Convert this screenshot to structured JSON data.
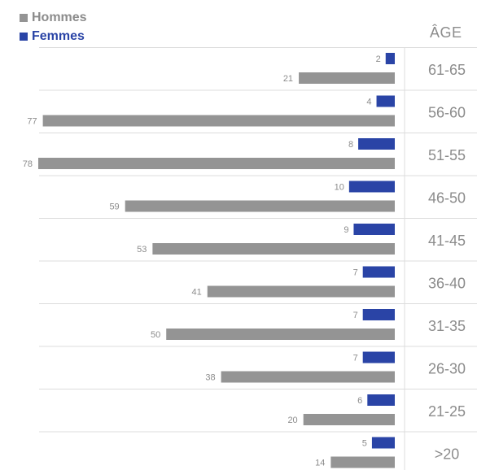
{
  "legend": {
    "men": "Hommes",
    "women": "Femmes"
  },
  "colors": {
    "men": "#949494",
    "women": "#2a44a6",
    "grid": "#dcdcdc"
  },
  "chart_data": {
    "type": "bar",
    "orientation": "horizontal",
    "ylabel": "ÂGE",
    "categories": [
      "61-65",
      "56-60",
      "51-55",
      "46-50",
      "41-45",
      "36-40",
      "31-35",
      "26-30",
      "21-25",
      ">20"
    ],
    "series": [
      {
        "name": "Femmes",
        "values": [
          2,
          4,
          8,
          10,
          9,
          7,
          7,
          7,
          6,
          5
        ]
      },
      {
        "name": "Hommes",
        "values": [
          21,
          77,
          78,
          59,
          53,
          41,
          50,
          38,
          20,
          14
        ]
      }
    ],
    "xlim": [
      0,
      78
    ],
    "legend_position": "top-left",
    "grid": true
  }
}
